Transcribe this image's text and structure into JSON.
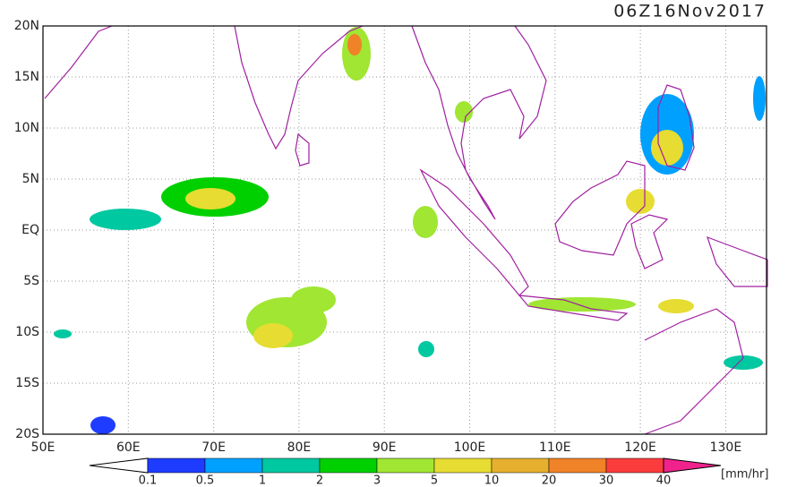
{
  "title": "06Z16Nov2017",
  "map": {
    "lon_labels": [
      "50E",
      "60E",
      "70E",
      "80E",
      "90E",
      "100E",
      "110E",
      "120E",
      "130E"
    ],
    "lat_labels": [
      "20N",
      "15N",
      "10N",
      "5N",
      "EQ",
      "5S",
      "10S",
      "15S",
      "20S"
    ]
  },
  "legend": {
    "labels": [
      "0.1",
      "0.5",
      "1",
      "2",
      "3",
      "5",
      "10",
      "20",
      "30",
      "40"
    ],
    "unit": "[mm/hr]",
    "colors": [
      "#ffffff",
      "#1e3cff",
      "#00a0ff",
      "#00c8a0",
      "#00d000",
      "#a0e632",
      "#e6dc32",
      "#e6af2d",
      "#f08228",
      "#fa3c3c",
      "#f0228c"
    ]
  }
}
